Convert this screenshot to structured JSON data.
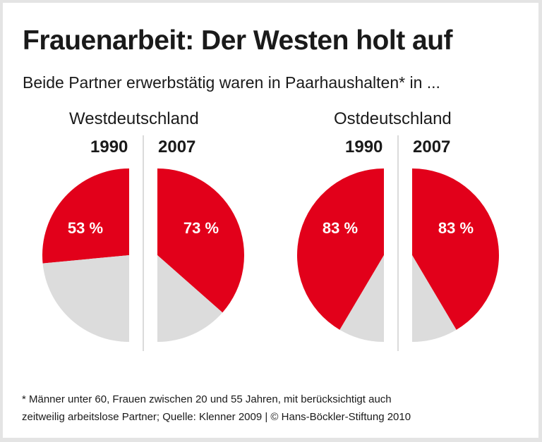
{
  "title": "Frauenarbeit: Der Westen holt auf",
  "subtitle": "Beide Partner erwerbstätig waren in Paarhaushalten* in ...",
  "footnote": {
    "line1": "* Männer unter 60, Frauen zwischen 20 und 55 Jahren, mit berücksichtigt auch",
    "line2": "zeitweilig arbeitslose Partner; Quelle: Klenner 2009 | © Hans-Böckler-Stiftung 2010"
  },
  "colors": {
    "value": "#e2001a",
    "remainder": "#dcdcdc"
  },
  "chart_data": {
    "type": "pie",
    "note": "half-pie pairs; each half circle = 100%",
    "groups": [
      {
        "region": "Westdeutschland",
        "pies": [
          {
            "year": "1990",
            "value": 53,
            "label": "53 %"
          },
          {
            "year": "2007",
            "value": 73,
            "label": "73 %"
          }
        ]
      },
      {
        "region": "Ostdeutschland",
        "pies": [
          {
            "year": "1990",
            "value": 83,
            "label": "83 %"
          },
          {
            "year": "2007",
            "value": 83,
            "label": "83 %"
          }
        ]
      }
    ]
  }
}
